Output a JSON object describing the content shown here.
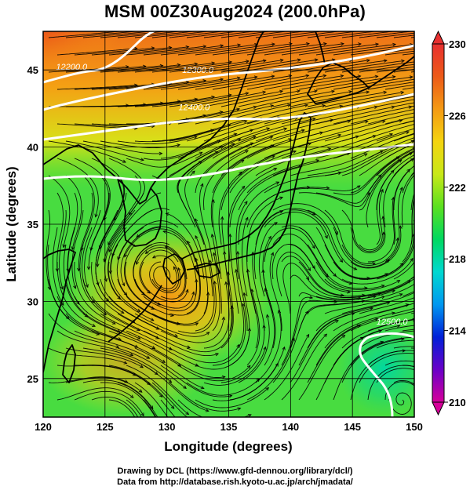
{
  "title": "MSM 00Z30Aug2024 (200.0hPa)",
  "credits": {
    "line1": "Drawing by DCL (https://www.gfd-dennou.org/library/dcl/)",
    "line2": "Data from http://database.rish.kyoto-u.ac.jp/arch/jmadata/"
  },
  "map": {
    "xlabel": "Longitude (degrees)",
    "ylabel": "Latitude  (degrees)",
    "lon_range": [
      120,
      150
    ],
    "lat_range": [
      22.5,
      47.5
    ],
    "lon_ticks": [
      "120",
      "125",
      "130",
      "135",
      "140",
      "145",
      "150"
    ],
    "lat_ticks": [
      "25",
      "30",
      "35",
      "40",
      "45"
    ],
    "lon_tick_values": [
      120,
      125,
      130,
      135,
      140,
      145,
      150
    ],
    "lat_tick_values": [
      25,
      30,
      35,
      40,
      45
    ],
    "contours": [
      {
        "label": "12200.0",
        "lon": 122.3,
        "lat": 45.0
      },
      {
        "label": "12300.0",
        "lon": 132.5,
        "lat": 44.8
      },
      {
        "label": "12400.0",
        "lon": 132.2,
        "lat": 42.4
      },
      {
        "label": "12500.0",
        "lon": 148.2,
        "lat": 28.5
      }
    ]
  },
  "colorbar": {
    "min": 210,
    "max": 230,
    "tick_labels": [
      "230",
      "226",
      "222",
      "218",
      "214",
      "210"
    ],
    "tick_values": [
      230,
      226,
      222,
      218,
      214,
      210
    ],
    "colors": [
      "#d6009a",
      "#6a00c8",
      "#0020d8",
      "#0098f0",
      "#00d8d0",
      "#00d860",
      "#5ae020",
      "#c8e818",
      "#f4d410",
      "#f49a14",
      "#ec5a18",
      "#e83030"
    ]
  }
}
